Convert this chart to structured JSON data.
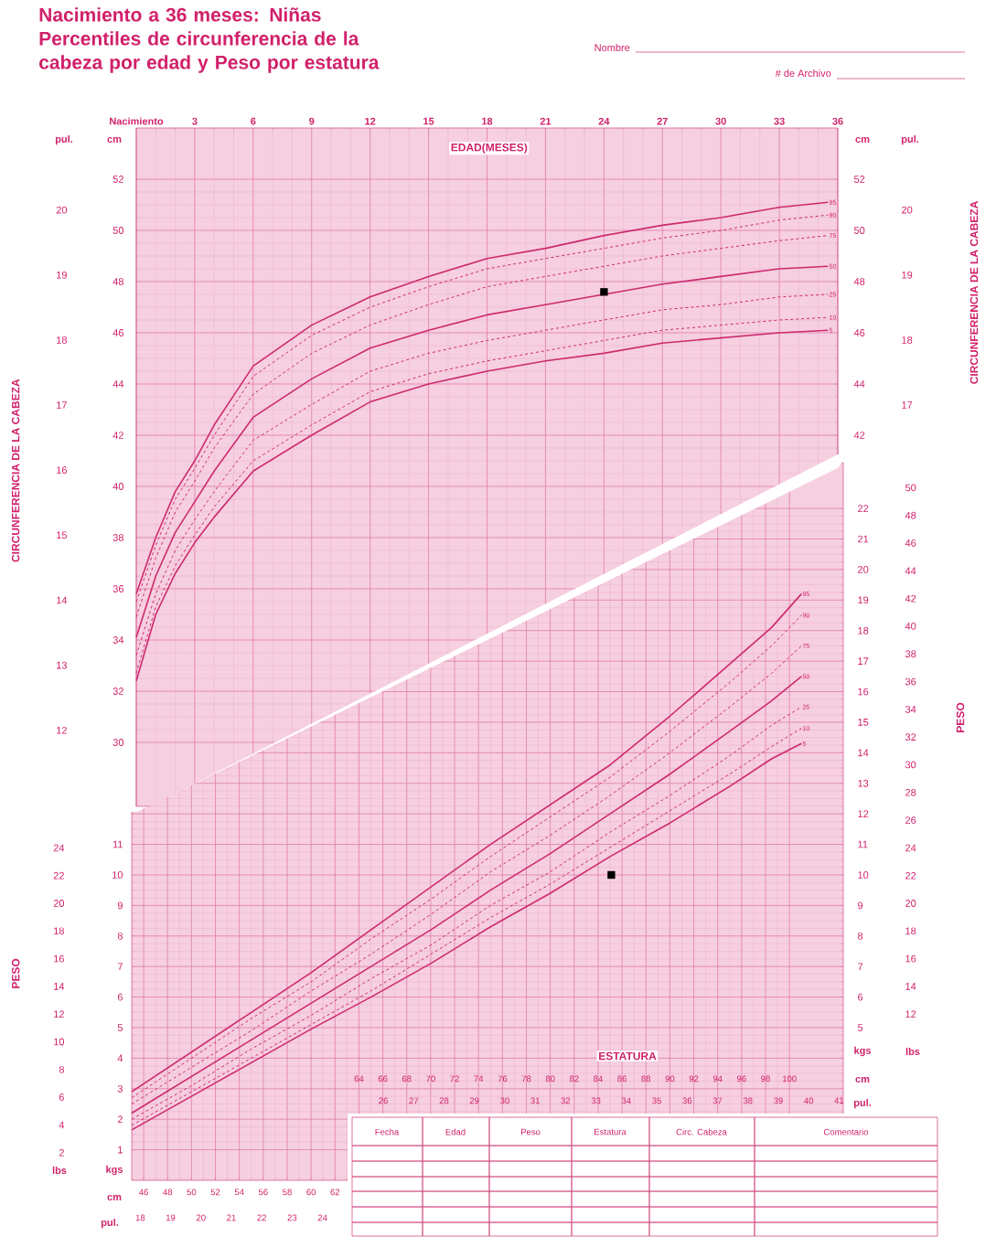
{
  "chart_data": [
    {
      "type": "line",
      "title": "Nacimiento a 36 meses: Niñas",
      "subtitle": "Percentiles de circunferencia de la cabeza por edad y Peso por estatura",
      "xlabel": "EDAD(MESES)",
      "ylabel": "CIRCUNFERENCIA DE LA CABEZA",
      "xlim": [
        0,
        36
      ],
      "xticks": [
        {
          "value": 0,
          "label": "Nacimiento"
        },
        3,
        6,
        9,
        12,
        15,
        18,
        21,
        24,
        27,
        30,
        33,
        36
      ],
      "ylim": [
        10.83,
        21.26
      ],
      "yticks": [
        12,
        13,
        14,
        15,
        16,
        17,
        18,
        19,
        20
      ],
      "y3lim": [
        27.5,
        54
      ],
      "y3ticks": [
        30,
        32,
        34,
        36,
        38,
        40,
        42,
        44,
        46,
        48,
        50,
        52
      ],
      "grid": true,
      "x": [
        0,
        1,
        2,
        3,
        4,
        6,
        9,
        12,
        15,
        18,
        21,
        24,
        27,
        30,
        33,
        35.5
      ],
      "series": [
        {
          "name": "95",
          "axis": "y3",
          "color": "#cc2a6e",
          "line_style": "solid",
          "values": [
            35.8,
            38.0,
            39.8,
            41.0,
            42.4,
            44.7,
            46.3,
            47.4,
            48.2,
            48.9,
            49.3,
            49.8,
            50.2,
            50.5,
            50.9,
            51.1
          ]
        },
        {
          "name": "90",
          "axis": "y3",
          "color": "#cc2a6e",
          "line_style": "dashed",
          "values": [
            35.5,
            37.7,
            39.5,
            40.7,
            42.0,
            44.3,
            45.9,
            47.0,
            47.8,
            48.5,
            48.9,
            49.3,
            49.7,
            50.0,
            50.4,
            50.6
          ]
        },
        {
          "name": "75",
          "axis": "y3",
          "color": "#cc2a6e",
          "line_style": "dashed",
          "values": [
            34.9,
            37.2,
            39.0,
            40.2,
            41.5,
            43.6,
            45.2,
            46.3,
            47.1,
            47.8,
            48.2,
            48.6,
            49.0,
            49.3,
            49.6,
            49.8
          ]
        },
        {
          "name": "50",
          "axis": "y3",
          "color": "#cc2a6e",
          "line_style": "solid",
          "values": [
            34.1,
            36.5,
            38.2,
            39.4,
            40.6,
            42.7,
            44.2,
            45.4,
            46.1,
            46.7,
            47.1,
            47.5,
            47.9,
            48.2,
            48.5,
            48.6
          ]
        },
        {
          "name": "25",
          "axis": "y3",
          "color": "#cc2a6e",
          "line_style": "dashed",
          "values": [
            33.4,
            35.8,
            37.5,
            38.7,
            39.8,
            41.8,
            43.2,
            44.5,
            45.2,
            45.7,
            46.1,
            46.5,
            46.9,
            47.1,
            47.4,
            47.5
          ]
        },
        {
          "name": "10",
          "axis": "y3",
          "color": "#cc2a6e",
          "line_style": "dashed",
          "values": [
            32.7,
            35.3,
            36.9,
            38.1,
            39.2,
            41.0,
            42.4,
            43.7,
            44.4,
            44.9,
            45.3,
            45.7,
            46.1,
            46.3,
            46.5,
            46.6
          ]
        },
        {
          "name": "5",
          "axis": "y3",
          "color": "#cc2a6e",
          "line_style": "solid",
          "values": [
            32.4,
            35.0,
            36.6,
            37.8,
            38.8,
            40.6,
            42.0,
            43.3,
            44.0,
            44.5,
            44.9,
            45.2,
            45.6,
            45.8,
            46.0,
            46.1
          ]
        }
      ],
      "annotations": [
        "Nombre",
        "# de Archivo",
        "cm",
        "pul."
      ]
    },
    {
      "type": "line",
      "ylabel": "PESO",
      "xlim": [
        45,
        104.5
      ],
      "xticks": [
        46,
        48,
        50,
        52,
        54,
        56,
        58,
        60,
        62
      ],
      "x2lim": [
        17.72,
        41.14
      ],
      "x2ticks": [
        18,
        19,
        20,
        21,
        22,
        23,
        24
      ],
      "ylim": [
        0,
        51.81
      ],
      "yticks": [
        2,
        4,
        6,
        8,
        10,
        12,
        14,
        16,
        18,
        20,
        22,
        24
      ],
      "y3lim": [
        0,
        23.5
      ],
      "y3ticks": [
        1,
        2,
        3,
        4,
        5,
        6,
        7,
        8,
        9,
        10,
        11
      ],
      "grid": true,
      "x": [
        45,
        50,
        55,
        60,
        65,
        70,
        75,
        80,
        85,
        90,
        95,
        98.5,
        101
      ],
      "series": [
        {
          "name": "95",
          "axis": "y3",
          "color": "#cc2a6e",
          "line_style": "solid",
          "values": [
            2.9,
            4.2,
            5.5,
            6.8,
            8.2,
            9.6,
            11.0,
            12.3,
            13.6,
            15.2,
            16.9,
            18.1,
            19.2
          ]
        },
        {
          "name": "90",
          "axis": "y3",
          "color": "#cc2a6e",
          "line_style": "dashed",
          "values": [
            2.7,
            4.0,
            5.3,
            6.5,
            7.9,
            9.2,
            10.6,
            11.9,
            13.2,
            14.7,
            16.3,
            17.5,
            18.5
          ]
        },
        {
          "name": "75",
          "axis": "y3",
          "color": "#cc2a6e",
          "line_style": "dashed",
          "values": [
            2.5,
            3.7,
            4.9,
            6.2,
            7.4,
            8.7,
            10.1,
            11.3,
            12.6,
            14.0,
            15.5,
            16.6,
            17.5
          ]
        },
        {
          "name": "50",
          "axis": "y3",
          "color": "#cc2a6e",
          "line_style": "solid",
          "values": [
            2.2,
            3.4,
            4.6,
            5.8,
            7.0,
            8.2,
            9.5,
            10.7,
            12.0,
            13.3,
            14.7,
            15.7,
            16.5
          ]
        },
        {
          "name": "25",
          "axis": "y3",
          "color": "#cc2a6e",
          "line_style": "dashed",
          "values": [
            2.0,
            3.1,
            4.3,
            5.4,
            6.6,
            7.7,
            9.0,
            10.1,
            11.4,
            12.6,
            13.9,
            14.9,
            15.5
          ]
        },
        {
          "name": "10",
          "axis": "y3",
          "color": "#cc2a6e",
          "line_style": "dashed",
          "values": [
            1.8,
            2.9,
            4.0,
            5.1,
            6.2,
            7.4,
            8.6,
            9.7,
            10.9,
            12.1,
            13.3,
            14.2,
            14.8
          ]
        },
        {
          "name": "5",
          "axis": "y3",
          "color": "#cc2a6e",
          "line_style": "solid",
          "values": [
            1.65,
            2.75,
            3.85,
            4.95,
            6.0,
            7.1,
            8.3,
            9.4,
            10.6,
            11.7,
            12.9,
            13.8,
            14.3
          ]
        }
      ],
      "annotations": [
        "kgs",
        "lbs",
        "cm",
        "pul."
      ]
    },
    {
      "type": "scatter",
      "y2label": "CIRCUNFERENCIA DE LA CABEZA",
      "tick_labels": "y",
      "xlim": [
        0,
        36
      ],
      "ylim": [
        27.5,
        54
      ],
      "yticks": [
        42,
        44,
        46,
        48,
        50,
        52
      ],
      "y2lim": [
        10.83,
        21.26
      ],
      "y2ticks": [
        17,
        18,
        19,
        20
      ],
      "series": [
        {
          "marker": "square",
          "color": "#000000",
          "x": [
            24
          ],
          "values": [
            47.6
          ]
        }
      ],
      "annotations": [
        "cm",
        "pul."
      ]
    },
    {
      "type": "scatter",
      "xlabel": "ESTATURA",
      "y2label": "PESO",
      "xlim": [
        45,
        104.5
      ],
      "xticks": [
        64,
        66,
        68,
        70,
        72,
        74,
        76,
        78,
        80,
        82,
        84,
        86,
        88,
        90,
        92,
        94,
        96,
        98,
        100
      ],
      "x2lim": [
        17.72,
        41.14
      ],
      "x2ticks": [
        26,
        27,
        28,
        29,
        30,
        31,
        32,
        33,
        34,
        35,
        36,
        37,
        38,
        39,
        40,
        41
      ],
      "ylim": [
        0,
        23.5
      ],
      "yticks": [
        5,
        6,
        7,
        8,
        9,
        10,
        11,
        12,
        13,
        14,
        15,
        16,
        17,
        18,
        19,
        20,
        21,
        22
      ],
      "y2lim": [
        0,
        51.81
      ],
      "y2ticks": [
        12,
        14,
        16,
        18,
        20,
        22,
        24,
        26,
        28,
        30,
        32,
        34,
        36,
        38,
        40,
        42,
        44,
        46,
        48,
        50
      ],
      "series": [
        {
          "marker": "square",
          "color": "#000000",
          "x": [
            85.1
          ],
          "values": [
            10.0
          ]
        }
      ],
      "annotations": [
        "kgs",
        "lbs",
        "cm",
        "pul.",
        "Fecha",
        "Edad",
        "Peso",
        "Estatura",
        "Circ. Cabeza",
        "Comentario"
      ]
    }
  ]
}
